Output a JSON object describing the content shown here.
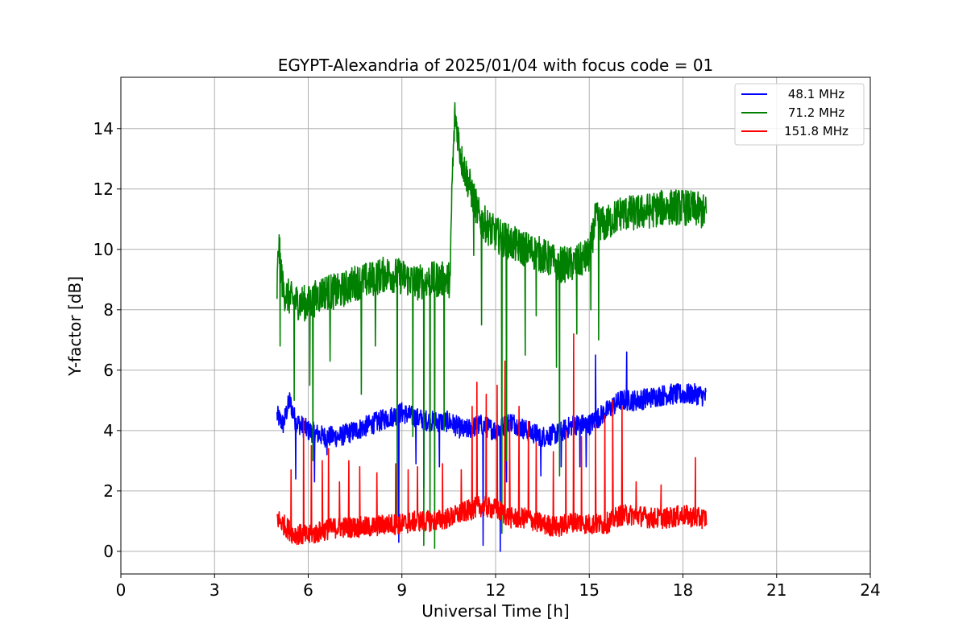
{
  "chart_data": {
    "type": "line",
    "title": "EGYPT-Alexandria of 2025/01/04 with focus code = 01",
    "xlabel": "Universal Time [h]",
    "ylabel": "Y-factor [dB]",
    "xlim": [
      0,
      24
    ],
    "ylim": [
      -0.75,
      15.7
    ],
    "xticks": [
      0,
      3,
      6,
      9,
      12,
      15,
      18,
      21,
      24
    ],
    "yticks": [
      0,
      2,
      4,
      6,
      8,
      10,
      12,
      14
    ],
    "xtick_labels": [
      "0",
      "3",
      "6",
      "9",
      "12",
      "15",
      "18",
      "21",
      "24"
    ],
    "ytick_labels": [
      "0",
      "2",
      "4",
      "6",
      "8",
      "10",
      "12",
      "14"
    ],
    "grid": true,
    "legend_position": "top-right",
    "series": [
      {
        "name": "48.1 MHz",
        "color": "#0000ff",
        "noise": 0.35,
        "x": [
          5.0,
          5.2,
          5.4,
          5.6,
          6.0,
          6.5,
          7.0,
          7.5,
          8.0,
          8.5,
          9.0,
          9.5,
          10.0,
          10.5,
          11.0,
          11.5,
          12.0,
          12.5,
          13.0,
          13.5,
          14.0,
          14.5,
          15.0,
          15.5,
          16.0,
          16.5,
          17.0,
          17.5,
          18.0,
          18.5,
          18.75
        ],
        "y": [
          4.5,
          4.2,
          5.0,
          4.3,
          4.0,
          3.8,
          3.8,
          4.0,
          4.2,
          4.4,
          4.6,
          4.4,
          4.3,
          4.3,
          4.0,
          4.2,
          4.0,
          4.3,
          4.0,
          3.8,
          3.9,
          4.2,
          4.2,
          4.6,
          5.0,
          5.0,
          5.1,
          5.2,
          5.2,
          5.2,
          5.1
        ]
      },
      {
        "name": "71.2 MHz",
        "color": "#008000",
        "noise": 0.6,
        "x": [
          5.0,
          5.05,
          5.2,
          5.5,
          6.0,
          6.5,
          7.0,
          7.5,
          8.0,
          8.5,
          9.0,
          9.5,
          10.0,
          10.55,
          10.6,
          10.7,
          10.9,
          11.2,
          11.5,
          12.0,
          12.5,
          13.0,
          13.5,
          14.0,
          14.5,
          15.0,
          15.2,
          15.5,
          16.0,
          16.5,
          17.0,
          17.5,
          18.0,
          18.5,
          18.75
        ],
        "y": [
          8.6,
          10.2,
          8.6,
          8.3,
          8.2,
          8.6,
          8.6,
          8.9,
          9.0,
          9.2,
          9.1,
          8.9,
          9.0,
          9.0,
          12.0,
          14.5,
          13.0,
          12.0,
          11.0,
          10.5,
          10.2,
          10.0,
          9.8,
          9.5,
          9.5,
          9.8,
          11.0,
          10.8,
          11.2,
          11.2,
          11.3,
          11.4,
          11.4,
          11.3,
          11.2
        ]
      },
      {
        "name": "151.8 MHz",
        "color": "#ff0000",
        "noise": 0.35,
        "x": [
          5.0,
          5.5,
          6.0,
          6.5,
          7.0,
          7.5,
          8.0,
          8.5,
          9.0,
          9.5,
          10.0,
          10.5,
          11.0,
          11.5,
          12.0,
          12.5,
          13.0,
          13.5,
          14.0,
          14.5,
          15.0,
          15.5,
          16.0,
          16.5,
          17.0,
          17.5,
          18.0,
          18.5,
          18.75
        ],
        "y": [
          1.1,
          0.6,
          0.5,
          0.7,
          0.8,
          0.8,
          0.8,
          0.9,
          0.9,
          1.0,
          1.0,
          1.1,
          1.3,
          1.5,
          1.4,
          1.1,
          1.1,
          0.9,
          0.8,
          1.0,
          0.9,
          0.9,
          1.2,
          1.2,
          1.1,
          1.1,
          1.2,
          1.1,
          1.1
        ]
      }
    ],
    "spikes": [
      {
        "series": 1,
        "points": [
          [
            5.1,
            6.8
          ],
          [
            5.55,
            5.0
          ],
          [
            6.05,
            5.5
          ],
          [
            6.15,
            3.0
          ],
          [
            6.7,
            6.3
          ],
          [
            7.7,
            5.2
          ],
          [
            8.15,
            6.8
          ],
          [
            8.85,
            1.0
          ],
          [
            9.35,
            3.8
          ],
          [
            9.7,
            0.2
          ],
          [
            9.9,
            1.0
          ],
          [
            10.05,
            0.1
          ],
          [
            10.35,
            4.0
          ],
          [
            11.3,
            9.8
          ],
          [
            11.55,
            7.5
          ],
          [
            12.2,
            0.6
          ],
          [
            12.35,
            3.0
          ],
          [
            12.95,
            6.5
          ],
          [
            13.3,
            7.8
          ],
          [
            13.95,
            6.1
          ],
          [
            14.05,
            2.5
          ],
          [
            14.6,
            7.2
          ],
          [
            15.05,
            8.0
          ],
          [
            15.3,
            7.0
          ]
        ]
      },
      {
        "series": 0,
        "points": [
          [
            5.6,
            2.4
          ],
          [
            6.2,
            2.3
          ],
          [
            6.6,
            3.2
          ],
          [
            8.9,
            0.3
          ],
          [
            9.45,
            2.9
          ],
          [
            9.7,
            2.1
          ],
          [
            10.2,
            2.8
          ],
          [
            11.6,
            0.2
          ],
          [
            12.15,
            0.0
          ],
          [
            12.35,
            2.3
          ],
          [
            13.45,
            2.5
          ],
          [
            14.1,
            2.8
          ],
          [
            14.7,
            2.8
          ],
          [
            14.9,
            2.8
          ],
          [
            15.2,
            6.5
          ],
          [
            16.2,
            6.6
          ]
        ]
      },
      {
        "series": 2,
        "points": [
          [
            5.45,
            2.7
          ],
          [
            5.85,
            4.4
          ],
          [
            6.1,
            3.5
          ],
          [
            6.45,
            3.0
          ],
          [
            6.65,
            3.4
          ],
          [
            7.0,
            2.3
          ],
          [
            7.3,
            3.0
          ],
          [
            7.65,
            2.8
          ],
          [
            8.2,
            2.6
          ],
          [
            8.8,
            2.9
          ],
          [
            9.2,
            2.7
          ],
          [
            9.5,
            2.8
          ],
          [
            10.3,
            2.9
          ],
          [
            10.9,
            2.7
          ],
          [
            11.25,
            4.8
          ],
          [
            11.4,
            5.6
          ],
          [
            11.7,
            5.2
          ],
          [
            12.05,
            5.5
          ],
          [
            12.3,
            6.3
          ],
          [
            12.45,
            4.3
          ],
          [
            12.75,
            4.8
          ],
          [
            13.05,
            4.3
          ],
          [
            13.3,
            3.6
          ],
          [
            13.85,
            3.3
          ],
          [
            14.25,
            4.0
          ],
          [
            14.5,
            7.2
          ],
          [
            14.75,
            3.8
          ],
          [
            15.2,
            4.2
          ],
          [
            15.5,
            4.5
          ],
          [
            15.75,
            5.0
          ],
          [
            16.05,
            4.8
          ],
          [
            16.5,
            2.3
          ],
          [
            17.3,
            2.2
          ],
          [
            18.4,
            3.1
          ]
        ]
      }
    ]
  }
}
